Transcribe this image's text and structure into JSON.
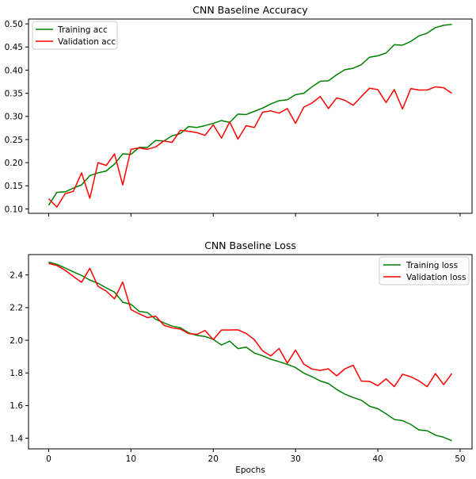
{
  "colors": {
    "training": "#008000",
    "validation": "#ff0000"
  },
  "chart_data": [
    {
      "type": "line",
      "title": "CNN Baseline Accuracy",
      "xlabel": "",
      "ylabel": "",
      "xlim": [
        -2.45,
        51.45
      ],
      "ylim": [
        0.0905,
        0.5105
      ],
      "xticks": [
        0,
        10,
        20,
        30,
        40,
        50
      ],
      "xtick_labels_visible": false,
      "yticks": [
        0.1,
        0.15,
        0.2,
        0.25,
        0.3,
        0.35,
        0.4,
        0.45,
        0.5
      ],
      "ytick_labels": [
        "0.10",
        "0.15",
        "0.20",
        "0.25",
        "0.30",
        "0.35",
        "0.40",
        "0.45",
        "0.50"
      ],
      "grid": false,
      "legend": "top-left",
      "x": [
        0,
        1,
        2,
        3,
        4,
        5,
        6,
        7,
        8,
        9,
        10,
        11,
        12,
        13,
        14,
        15,
        16,
        17,
        18,
        19,
        20,
        21,
        22,
        23,
        24,
        25,
        26,
        27,
        28,
        29,
        30,
        31,
        32,
        33,
        34,
        35,
        36,
        37,
        38,
        39,
        40,
        41,
        42,
        43,
        44,
        45,
        46,
        47,
        48,
        49
      ],
      "series": [
        {
          "name": "Training acc",
          "color_key": "training",
          "values": [
            0.108,
            0.136,
            0.137,
            0.145,
            0.152,
            0.172,
            0.178,
            0.182,
            0.197,
            0.219,
            0.218,
            0.233,
            0.233,
            0.248,
            0.247,
            0.258,
            0.263,
            0.278,
            0.276,
            0.28,
            0.285,
            0.291,
            0.287,
            0.305,
            0.304,
            0.311,
            0.318,
            0.327,
            0.334,
            0.336,
            0.347,
            0.35,
            0.364,
            0.376,
            0.377,
            0.39,
            0.401,
            0.404,
            0.412,
            0.428,
            0.431,
            0.437,
            0.455,
            0.454,
            0.462,
            0.474,
            0.48,
            0.492,
            0.497,
            0.499
          ]
        },
        {
          "name": "Validation acc",
          "color_key": "validation",
          "values": [
            0.122,
            0.104,
            0.133,
            0.138,
            0.178,
            0.123,
            0.2,
            0.194,
            0.219,
            0.152,
            0.229,
            0.232,
            0.229,
            0.234,
            0.247,
            0.244,
            0.27,
            0.268,
            0.265,
            0.259,
            0.282,
            0.253,
            0.288,
            0.251,
            0.28,
            0.276,
            0.309,
            0.312,
            0.307,
            0.317,
            0.285,
            0.32,
            0.329,
            0.343,
            0.317,
            0.34,
            0.335,
            0.324,
            0.343,
            0.361,
            0.358,
            0.33,
            0.358,
            0.316,
            0.36,
            0.357,
            0.357,
            0.364,
            0.362,
            0.35
          ]
        }
      ]
    },
    {
      "type": "line",
      "title": "CNN Baseline Loss",
      "xlabel": "Epochs",
      "ylabel": "",
      "xlim": [
        -2.45,
        51.45
      ],
      "ylim": [
        1.335,
        2.525
      ],
      "xticks": [
        0,
        10,
        20,
        30,
        40,
        50
      ],
      "xtick_labels": [
        "0",
        "10",
        "20",
        "30",
        "40",
        "50"
      ],
      "yticks": [
        1.4,
        1.6,
        1.8,
        2.0,
        2.2,
        2.4
      ],
      "ytick_labels": [
        "1.4",
        "1.6",
        "1.8",
        "2.0",
        "2.2",
        "2.4"
      ],
      "grid": false,
      "legend": "top-right",
      "x": [
        0,
        1,
        2,
        3,
        4,
        5,
        6,
        7,
        8,
        9,
        10,
        11,
        12,
        13,
        14,
        15,
        16,
        17,
        18,
        19,
        20,
        21,
        22,
        23,
        24,
        25,
        26,
        27,
        28,
        29,
        30,
        31,
        32,
        33,
        34,
        35,
        36,
        37,
        38,
        39,
        40,
        41,
        42,
        43,
        44,
        45,
        46,
        47,
        48,
        49
      ],
      "series": [
        {
          "name": "Training loss",
          "color_key": "training",
          "values": [
            2.479,
            2.465,
            2.443,
            2.419,
            2.397,
            2.369,
            2.349,
            2.321,
            2.295,
            2.233,
            2.221,
            2.177,
            2.17,
            2.129,
            2.107,
            2.087,
            2.077,
            2.046,
            2.03,
            2.023,
            2.006,
            1.971,
            1.995,
            1.949,
            1.958,
            1.922,
            1.905,
            1.884,
            1.869,
            1.853,
            1.833,
            1.799,
            1.777,
            1.751,
            1.735,
            1.699,
            1.67,
            1.65,
            1.633,
            1.596,
            1.581,
            1.55,
            1.515,
            1.508,
            1.485,
            1.451,
            1.446,
            1.419,
            1.406,
            1.385
          ]
        },
        {
          "name": "Validation loss",
          "color_key": "validation",
          "values": [
            2.471,
            2.458,
            2.429,
            2.391,
            2.355,
            2.441,
            2.33,
            2.301,
            2.254,
            2.357,
            2.188,
            2.162,
            2.139,
            2.148,
            2.092,
            2.076,
            2.069,
            2.041,
            2.036,
            2.06,
            2.004,
            2.063,
            2.063,
            2.064,
            2.042,
            2.004,
            1.935,
            1.904,
            1.95,
            1.86,
            1.94,
            1.854,
            1.824,
            1.816,
            1.825,
            1.782,
            1.825,
            1.847,
            1.75,
            1.748,
            1.722,
            1.764,
            1.716,
            1.792,
            1.777,
            1.751,
            1.716,
            1.796,
            1.728,
            1.796
          ]
        }
      ]
    }
  ]
}
